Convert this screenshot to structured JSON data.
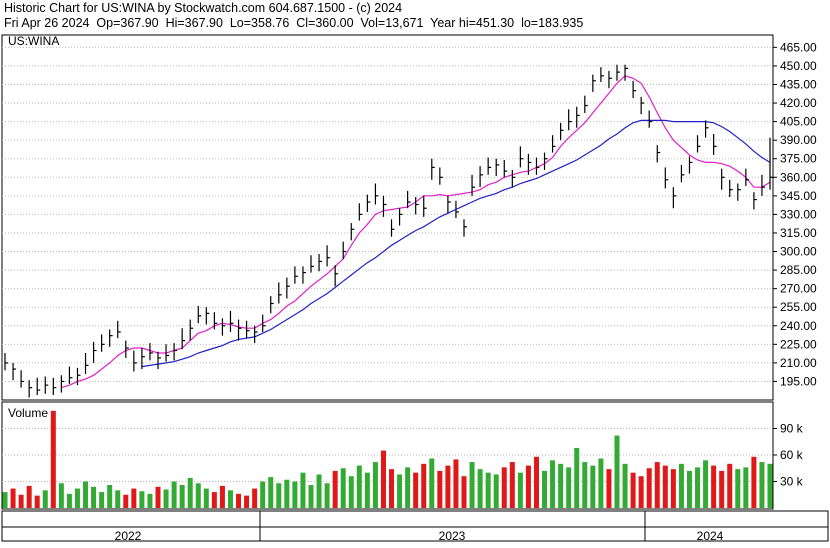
{
  "chart_data": {
    "type": "ohlc",
    "title": "Historic Chart for US:WINA by Stockwatch.com 604.687.1500 - (c) 2024",
    "subtitle": "Fri Apr 26 2024  Op=367.90  Hi=367.90  Lo=358.76  Cl=360.00  Vol=13,671  Year hi=451.30  lo=183.935",
    "symbol": "US:WINA",
    "bar_color": "#000000",
    "up_color": "#33aa33",
    "down_color": "#e01818",
    "grid": true,
    "high": [
      218,
      210,
      204,
      196,
      198,
      199,
      198,
      200,
      207,
      206,
      218,
      227,
      233,
      237,
      244,
      228,
      220,
      222,
      226,
      219,
      225,
      226,
      238,
      245,
      256,
      255,
      251,
      246,
      252,
      245,
      244,
      240,
      249,
      264,
      275,
      279,
      288,
      288,
      297,
      298,
      305,
      289,
      308,
      323,
      339,
      346,
      355,
      345,
      326,
      335,
      349,
      344,
      345,
      375,
      368,
      345,
      341,
      326,
      362,
      369,
      376,
      375,
      374,
      366,
      385,
      379,
      376,
      380,
      394,
      404,
      415,
      417,
      426,
      443,
      449,
      446,
      451,
      451,
      438,
      425,
      414,
      386,
      368,
      352,
      370,
      377,
      394,
      406,
      395,
      367,
      358,
      355,
      367,
      348,
      362,
      392
    ],
    "low": [
      204,
      196,
      190,
      182,
      184,
      185,
      184,
      186,
      193,
      192,
      201,
      210,
      219,
      223,
      230,
      214,
      203,
      205,
      212,
      205,
      211,
      212,
      221,
      228,
      242,
      241,
      237,
      232,
      235,
      228,
      230,
      226,
      235,
      250,
      258,
      262,
      274,
      274,
      283,
      284,
      288,
      272,
      294,
      309,
      325,
      332,
      338,
      328,
      312,
      321,
      335,
      330,
      328,
      358,
      354,
      331,
      327,
      312,
      345,
      352,
      362,
      361,
      360,
      352,
      368,
      362,
      362,
      366,
      380,
      390,
      398,
      400,
      412,
      429,
      437,
      432,
      438,
      438,
      424,
      411,
      400,
      372,
      351,
      335,
      356,
      363,
      380,
      392,
      378,
      350,
      344,
      341,
      353,
      334,
      345,
      350
    ],
    "close": [
      210,
      205,
      195,
      190,
      188,
      192,
      190,
      195,
      198,
      200,
      208,
      220,
      225,
      232,
      235,
      222,
      210,
      215,
      218,
      214,
      216,
      220,
      228,
      238,
      248,
      250,
      242,
      240,
      242,
      238,
      236,
      235,
      240,
      258,
      265,
      272,
      280,
      283,
      288,
      292,
      295,
      282,
      300,
      318,
      330,
      340,
      345,
      338,
      318,
      330,
      340,
      338,
      335,
      368,
      360,
      340,
      332,
      320,
      352,
      362,
      368,
      370,
      365,
      360,
      375,
      372,
      368,
      375,
      385,
      398,
      405,
      410,
      418,
      438,
      442,
      440,
      445,
      448,
      430,
      420,
      405,
      380,
      358,
      345,
      362,
      372,
      385,
      400,
      385,
      360,
      350,
      350,
      358,
      342,
      352,
      360
    ],
    "moving_averages": [
      {
        "color": "#e020c8",
        "values": [
          null,
          null,
          null,
          null,
          null,
          null,
          null,
          190,
          192,
          195,
          197,
          200,
          205,
          210,
          216,
          220,
          222,
          222,
          220,
          218,
          218,
          220,
          222,
          228,
          234,
          236,
          240,
          242,
          241,
          239,
          238,
          238,
          242,
          245,
          250,
          256,
          260,
          266,
          272,
          277,
          282,
          288,
          294,
          305,
          315,
          322,
          330,
          333,
          334,
          335,
          336,
          340,
          345,
          345,
          346,
          345,
          346,
          347,
          348,
          350,
          354,
          356,
          360,
          362,
          364,
          365,
          368,
          371,
          376,
          385,
          392,
          398,
          404,
          412,
          420,
          428,
          436,
          442,
          440,
          436,
          425,
          412,
          400,
          390,
          384,
          378,
          374,
          372,
          372,
          371,
          369,
          365,
          360,
          352,
          352,
          356
        ]
      },
      {
        "color": "#2020c8",
        "values": [
          null,
          null,
          null,
          null,
          null,
          null,
          null,
          null,
          null,
          null,
          null,
          null,
          null,
          null,
          null,
          null,
          null,
          207,
          208,
          209,
          210,
          211,
          213,
          215,
          218,
          220,
          222,
          224,
          227,
          229,
          230,
          231,
          234,
          237,
          241,
          245,
          249,
          253,
          258,
          262,
          266,
          271,
          276,
          281,
          286,
          291,
          295,
          300,
          305,
          309,
          313,
          317,
          320,
          324,
          328,
          331,
          334,
          337,
          340,
          343,
          345,
          347,
          350,
          352,
          355,
          357,
          359,
          362,
          365,
          368,
          371,
          374,
          378,
          382,
          386,
          391,
          395,
          400,
          404,
          406,
          406,
          406,
          406,
          405,
          405,
          405,
          405,
          405,
          404,
          401,
          397,
          392,
          387,
          381,
          376,
          372
        ]
      }
    ],
    "ylim": [
      180,
      475
    ],
    "yticks": [
      {
        "value": 195,
        "label": "195.00"
      },
      {
        "value": 210,
        "label": "210.00"
      },
      {
        "value": 225,
        "label": "225.00"
      },
      {
        "value": 240,
        "label": "240.00"
      },
      {
        "value": 255,
        "label": "255.00"
      },
      {
        "value": 270,
        "label": "270.00"
      },
      {
        "value": 285,
        "label": "285.00"
      },
      {
        "value": 300,
        "label": "300.00"
      },
      {
        "value": 315,
        "label": "315.00"
      },
      {
        "value": 330,
        "label": "330.00"
      },
      {
        "value": 345,
        "label": "345.00"
      },
      {
        "value": 360,
        "label": "360.00"
      },
      {
        "value": 375,
        "label": "375.00"
      },
      {
        "value": 390,
        "label": "390.00"
      },
      {
        "value": 405,
        "label": "405.00"
      },
      {
        "value": 420,
        "label": "420.00"
      },
      {
        "value": 435,
        "label": "435.00"
      },
      {
        "value": 450,
        "label": "450.00"
      },
      {
        "value": 465,
        "label": "465.00"
      }
    ],
    "volume": {
      "label": "Volume",
      "values": [
        18000,
        22000,
        15000,
        25000,
        14000,
        20000,
        110000,
        28000,
        16000,
        22000,
        30000,
        24000,
        18000,
        26000,
        20000,
        15000,
        22000,
        19000,
        16000,
        24000,
        21000,
        30000,
        26000,
        34000,
        28000,
        22000,
        18000,
        25000,
        20000,
        16000,
        14000,
        22000,
        30000,
        35000,
        28000,
        32000,
        30000,
        40000,
        26000,
        38000,
        28000,
        42000,
        45000,
        36000,
        48000,
        40000,
        52000,
        65000,
        44000,
        38000,
        46000,
        40000,
        50000,
        56000,
        42000,
        48000,
        55000,
        36000,
        52000,
        44000,
        40000,
        38000,
        46000,
        52000,
        40000,
        48000,
        58000,
        42000,
        54000,
        50000,
        46000,
        68000,
        52000,
        48000,
        56000,
        44000,
        82000,
        50000,
        40000,
        36000,
        45000,
        52000,
        48000,
        44000,
        50000,
        42000,
        46000,
        54000,
        48000,
        42000,
        50000,
        44000,
        46000,
        58000,
        52000,
        50000
      ],
      "ylim": [
        0,
        120000
      ],
      "yticks": [
        {
          "value": 30000,
          "label": "30 k"
        },
        {
          "value": 60000,
          "label": "60 k"
        },
        {
          "value": 90000,
          "label": "90 k"
        }
      ]
    },
    "years": [
      "2022",
      "2023",
      "2024"
    ]
  }
}
